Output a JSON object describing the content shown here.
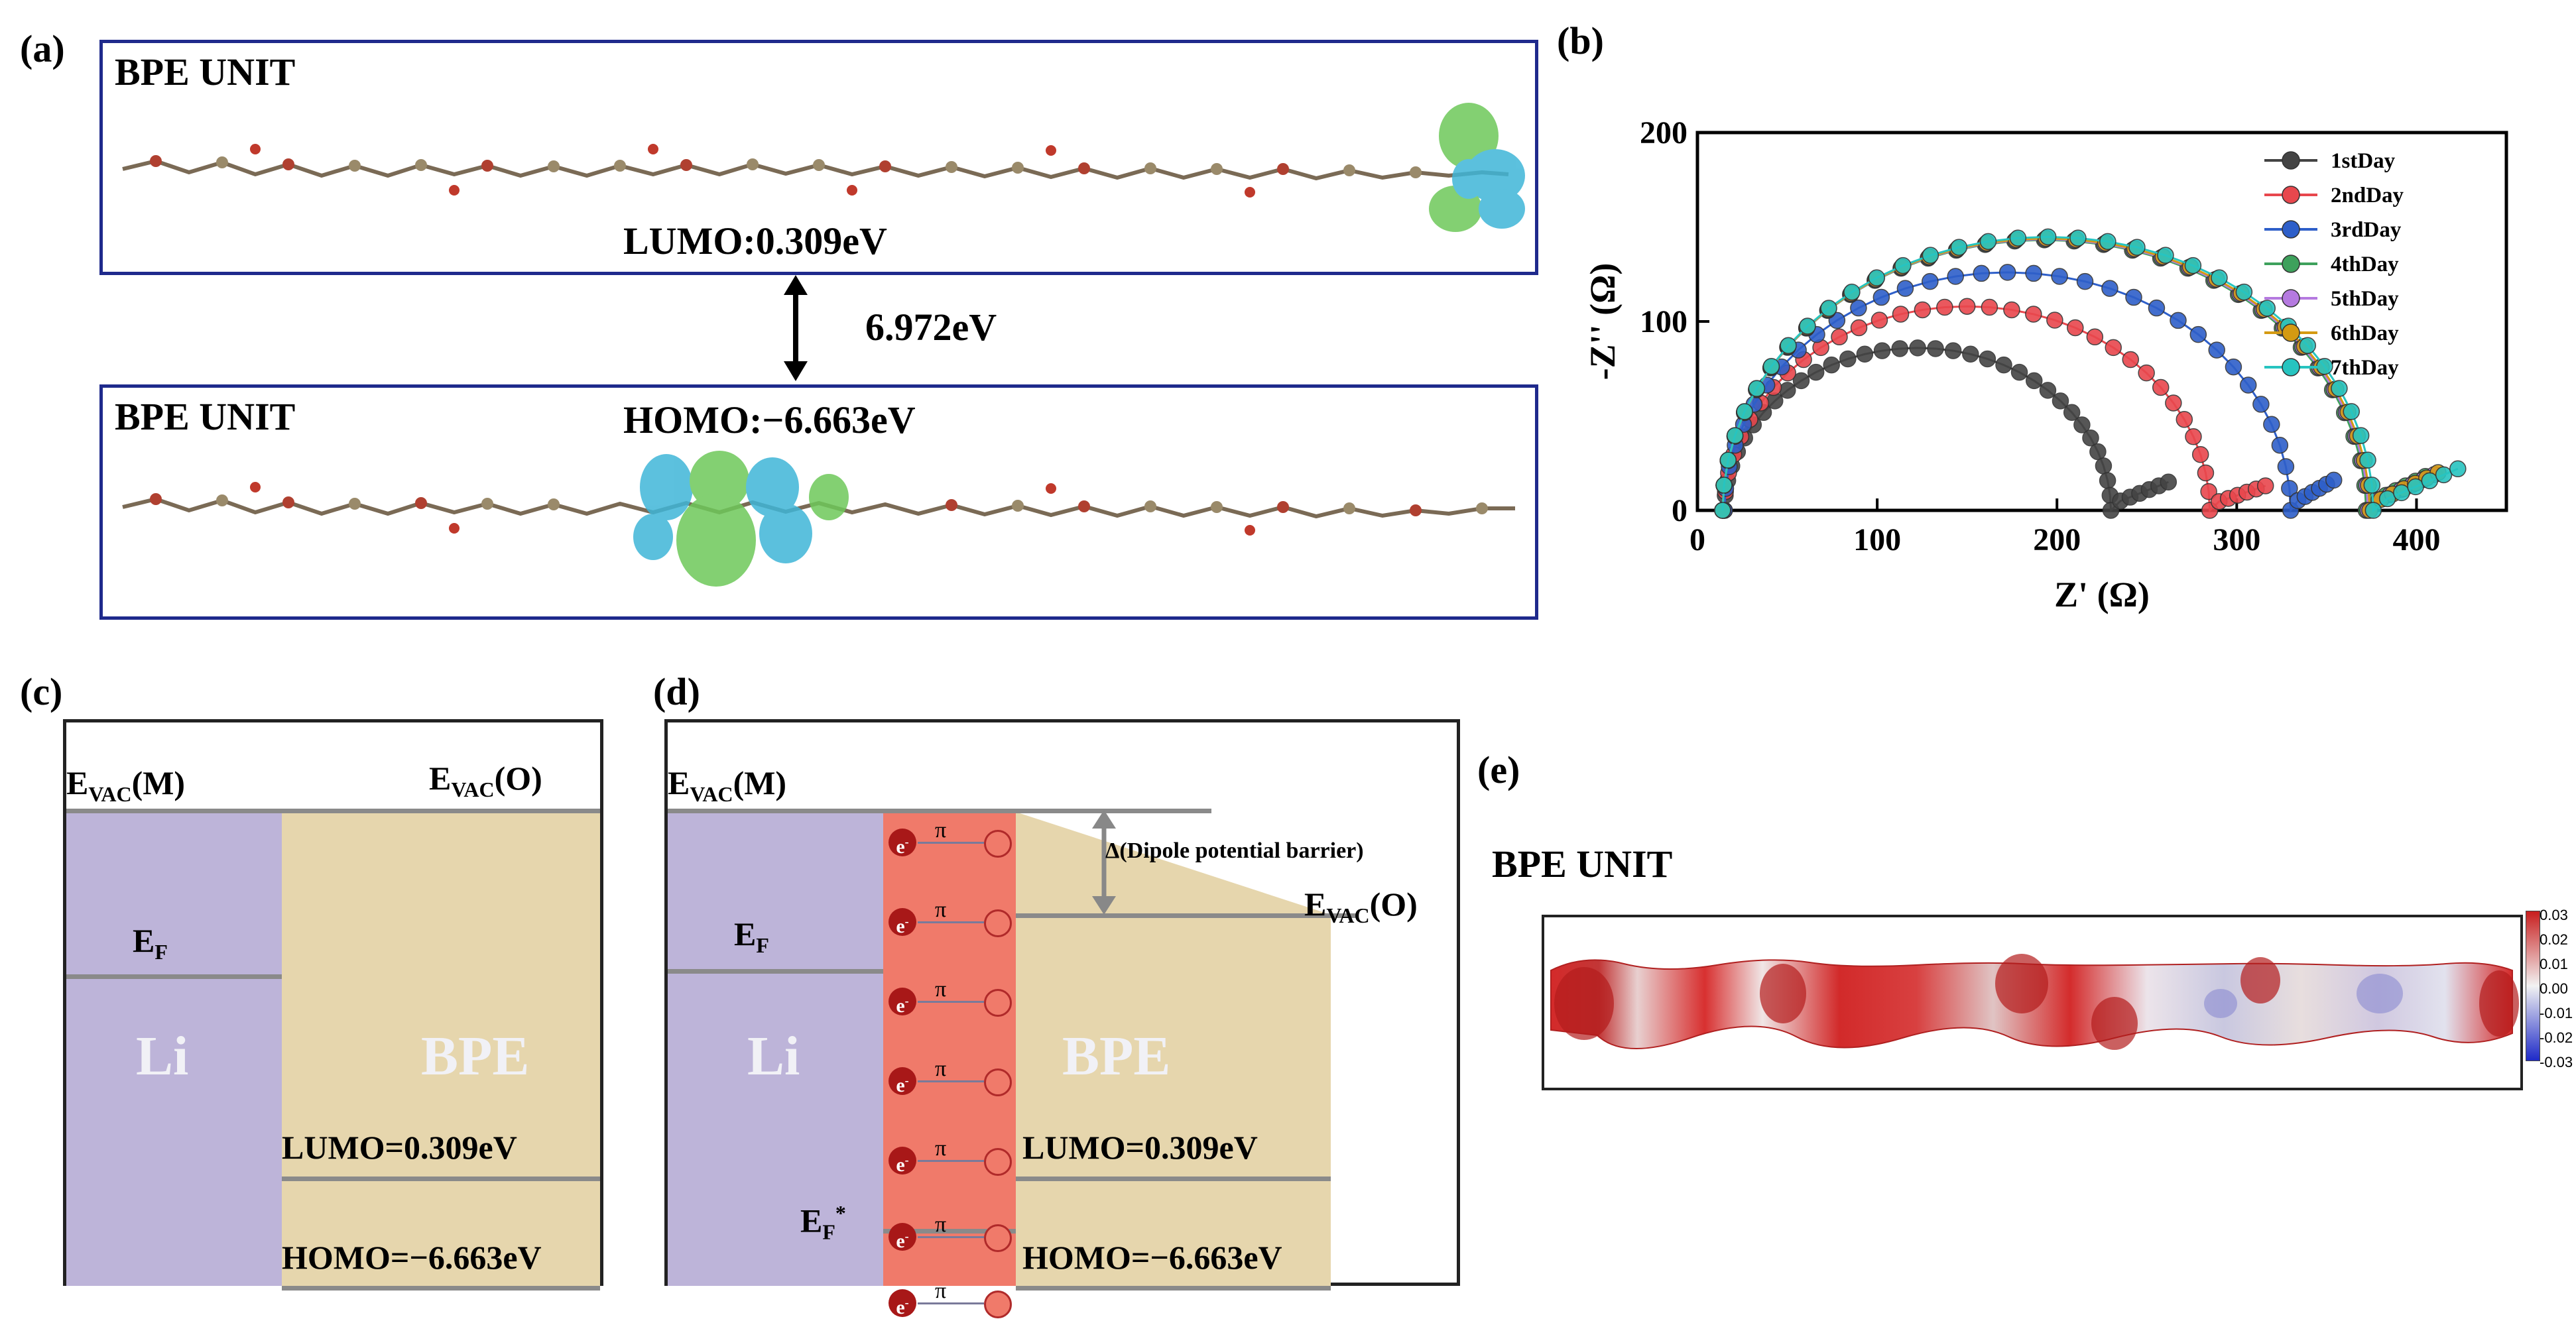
{
  "panel_labels": {
    "a": "(a)",
    "b": "(b)",
    "c": "(c)",
    "d": "(d)",
    "e": "(e)"
  },
  "panel_a": {
    "top_title": "BPE UNIT",
    "bottom_title": "BPE UNIT",
    "lumo": "LUMO:0.309eV",
    "homo": "HOMO:−6.663eV",
    "gap": "6.972eV"
  },
  "panel_c": {
    "evac_m_main": "E",
    "evac_m_sub": "VAC",
    "evac_m_tail": "(M)",
    "evac_o_main": "E",
    "evac_o_sub": "VAC",
    "evac_o_tail": "(O)",
    "ef_main": "E",
    "ef_sub": "F",
    "metal": "Li",
    "electrolyte": "BPE",
    "lumo": "LUMO=0.309eV",
    "homo": "HOMO=−6.663eV"
  },
  "panel_d": {
    "evac_m_main": "E",
    "evac_m_sub": "VAC",
    "evac_m_tail": "(M)",
    "evac_o_main": "E",
    "evac_o_sub": "VAC",
    "evac_o_tail": "(O)",
    "ef_main": "E",
    "ef_sub": "F",
    "efstar_main": "E",
    "efstar_sub": "F",
    "efstar_tail": "*",
    "metal": "Li",
    "electrolyte": "BPE",
    "lumo": "LUMO=0.309eV",
    "homo": "HOMO=−6.663eV",
    "barrier": "Δ(Dipole potential barrier)",
    "electron": "e",
    "electron_sup": "-",
    "pi": "π"
  },
  "panel_e": {
    "title": "BPE UNIT",
    "colorbar_ticks": [
      "0.03",
      "0.02",
      "0.01",
      "0.00",
      "-0.01",
      "-0.02",
      "-0.03"
    ]
  },
  "colors": {
    "li": "#bdb4d9",
    "bpe": "#e6d6ad",
    "dipole": "#f07a6a",
    "level": "#8a8a8a",
    "frame_a": "#1f2a8c"
  },
  "chart_data": {
    "type": "scatter",
    "xlabel": "Z' (Ω)",
    "ylabel": "-Z'' (Ω)",
    "xlim": [
      0,
      450
    ],
    "ylim": [
      0,
      200
    ],
    "xticks": [
      0,
      100,
      200,
      300,
      400
    ],
    "yticks": [
      0,
      100,
      200
    ],
    "legend_position": "top-right",
    "series": [
      {
        "name": "1stDay",
        "color": "#444444",
        "r0": 15,
        "R": 230,
        "tail_to": [
          262,
          15
        ]
      },
      {
        "name": "2ndDay",
        "color": "#e8474d",
        "r0": 15,
        "R": 285,
        "tail_to": [
          316,
          13
        ]
      },
      {
        "name": "3rdDay",
        "color": "#2e5fc9",
        "r0": 15,
        "R": 330,
        "tail_to": [
          354,
          16
        ]
      },
      {
        "name": "4thDay",
        "color": "#3ea15c",
        "r0": 14,
        "R": 372,
        "tail_to": [
          405,
          18
        ]
      },
      {
        "name": "5thDay",
        "color": "#b57ae0",
        "r0": 14,
        "R": 373,
        "tail_to": [
          410,
          19
        ]
      },
      {
        "name": "6thDay",
        "color": "#d49a12",
        "r0": 14,
        "R": 374,
        "tail_to": [
          412,
          20
        ]
      },
      {
        "name": "7thDay",
        "color": "#27c4c0",
        "r0": 14,
        "R": 376,
        "tail_to": [
          423,
          22
        ]
      }
    ]
  }
}
